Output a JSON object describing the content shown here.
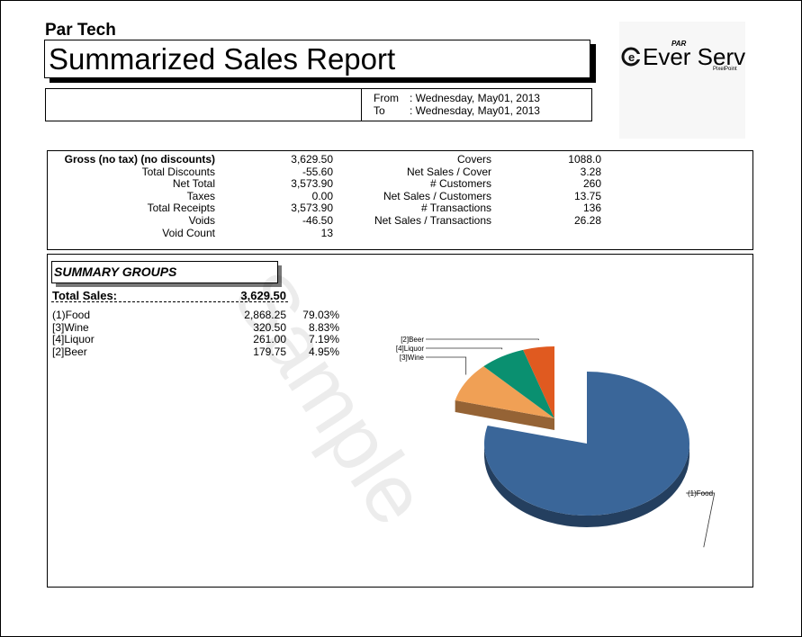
{
  "header": {
    "company": "Par Tech",
    "title": "Summarized Sales Report",
    "from_label": "From",
    "from_value": ": Wednesday, May01, 2013",
    "to_label": "To",
    "to_value": ": Wednesday, May01, 2013",
    "logo_main": "Ever Serv",
    "logo_par": "PAR",
    "logo_sub": "PixelPoint"
  },
  "stats_left": [
    {
      "label": "Gross (no tax) (no discounts)",
      "value": "3,629.50"
    },
    {
      "label": "Total Discounts",
      "value": "-55.60"
    },
    {
      "label": "Net Total",
      "value": "3,573.90"
    },
    {
      "label": "Taxes",
      "value": "0.00"
    },
    {
      "label": "Total Receipts",
      "value": "3,573.90"
    },
    {
      "label": "Voids",
      "value": "-46.50"
    },
    {
      "label": "Void Count",
      "value": "13"
    }
  ],
  "stats_right": [
    {
      "label": "Covers",
      "value": "1088.0"
    },
    {
      "label": "Net Sales / Cover",
      "value": "3.28"
    },
    {
      "label": "# Customers",
      "value": "260"
    },
    {
      "label": "Net Sales / Customers",
      "value": "13.75"
    },
    {
      "label": "# Transactions",
      "value": "136"
    },
    {
      "label": "Net Sales / Transactions",
      "value": "26.28"
    }
  ],
  "groups": {
    "heading": "SUMMARY GROUPS",
    "total_label": "Total Sales:",
    "total_value": "3,629.50",
    "rows": [
      {
        "name": "(1)Food",
        "amount": "2,868.25",
        "pct": "79.03%"
      },
      {
        "name": "[3]Wine",
        "amount": "320.50",
        "pct": "8.83%"
      },
      {
        "name": "[4]Liquor",
        "amount": "261.00",
        "pct": "7.19%"
      },
      {
        "name": "[2]Beer",
        "amount": "179.75",
        "pct": "4.95%"
      }
    ]
  },
  "watermark": "Sample",
  "chart_data": {
    "type": "pie",
    "categories": [
      "(1)Food",
      "[3]Wine",
      "[4]Liquor",
      "[2]Beer"
    ],
    "values": [
      79.03,
      8.83,
      7.19,
      4.95
    ],
    "colors": [
      "#3a6699",
      "#f0a055",
      "#0a9070",
      "#e05a20"
    ],
    "labels": [
      "(1)Food",
      "[3]Wine",
      "[4]Liquor",
      "[2]Beer"
    ]
  }
}
